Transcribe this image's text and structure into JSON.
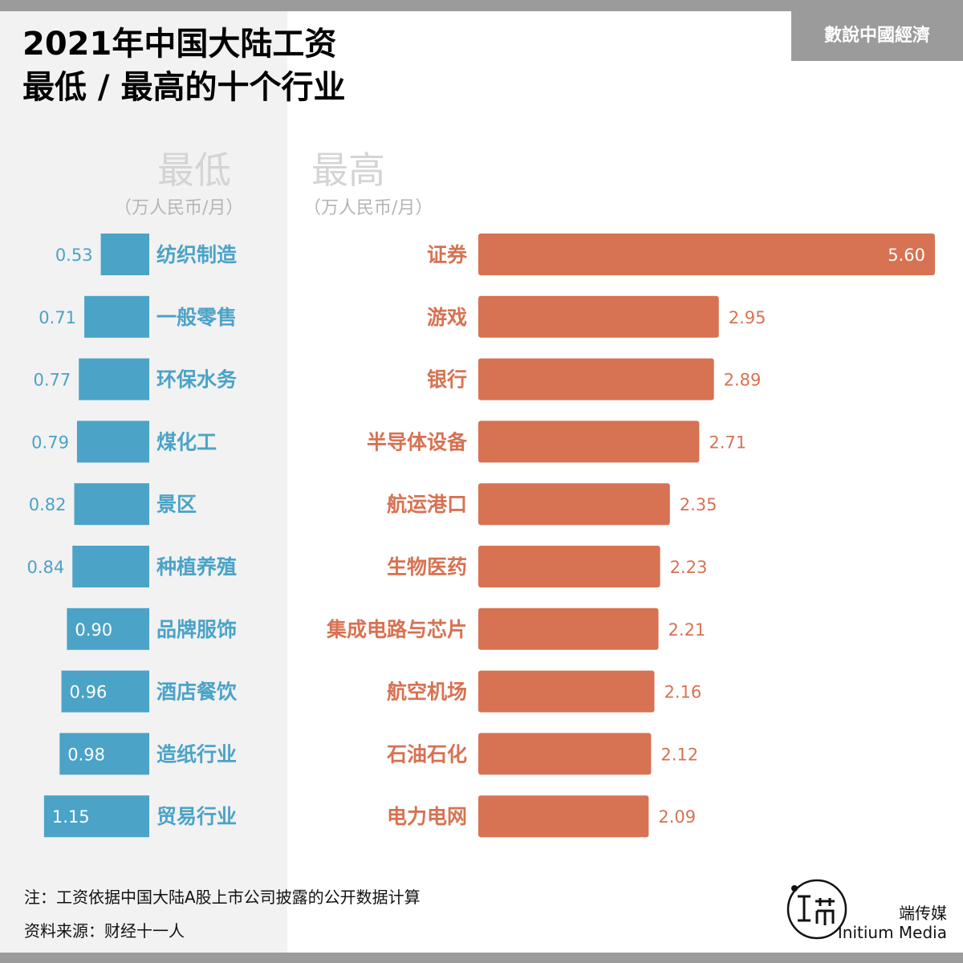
{
  "title_line1": "2021年中国大陆工资",
  "title_line2": "最低 / 最高的十个行业",
  "badge": "數說中國經濟",
  "left_header": "最低",
  "left_unit": "（万人民币/月）",
  "right_header": "最高",
  "right_unit": "（万人民币/月）",
  "note": "注：工资依据中国大陆A股上市公司披露的公开数据计算",
  "source": "资料来源：财经十一人",
  "brand_cn": "端传媒",
  "brand_en": "Initium Media",
  "colors": {
    "low": "#4ba3c7",
    "high": "#d77252",
    "panel": "#f2f2f2",
    "strip": "#9b9b9b"
  },
  "chart_data": [
    {
      "type": "bar",
      "title": "最低",
      "unit": "（万人民币/月）",
      "categories": [
        "纺织制造",
        "一般零售",
        "环保水务",
        "煤化工",
        "景区",
        "种植养殖",
        "品牌服饰",
        "酒店餐饮",
        "造纸行业",
        "贸易行业"
      ],
      "values": [
        0.53,
        0.71,
        0.77,
        0.79,
        0.82,
        0.84,
        0.9,
        0.96,
        0.98,
        1.15
      ],
      "value_labels": [
        "0.53",
        "0.71",
        "0.77",
        "0.79",
        "0.82",
        "0.84",
        "0.90",
        "0.96",
        "0.98",
        "1.15"
      ],
      "color": "#4ba3c7",
      "orientation": "horizontal",
      "direction": "leftward"
    },
    {
      "type": "bar",
      "title": "最高",
      "unit": "（万人民币/月）",
      "categories": [
        "证券",
        "游戏",
        "银行",
        "半导体设备",
        "航运港口",
        "生物医药",
        "集成电路与芯片",
        "航空机场",
        "石油石化",
        "电力电网"
      ],
      "values": [
        5.6,
        2.95,
        2.89,
        2.71,
        2.35,
        2.23,
        2.21,
        2.16,
        2.12,
        2.09
      ],
      "value_labels": [
        "5.60",
        "2.95",
        "2.89",
        "2.71",
        "2.35",
        "2.23",
        "2.21",
        "2.16",
        "2.12",
        "2.09"
      ],
      "color": "#d77252",
      "orientation": "horizontal",
      "direction": "rightward"
    }
  ]
}
